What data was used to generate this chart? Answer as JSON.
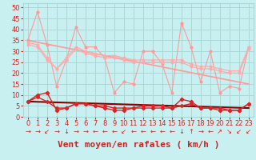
{
  "title": "",
  "xlabel": "Vent moyen/en rafales ( km/h )",
  "ylabel": "",
  "bg_color": "#c8f0f0",
  "grid_color": "#a8d8d8",
  "xlim": [
    -0.5,
    23.5
  ],
  "ylim": [
    0,
    52
  ],
  "yticks": [
    0,
    5,
    10,
    15,
    20,
    25,
    30,
    35,
    40,
    45,
    50
  ],
  "xticks": [
    0,
    1,
    2,
    3,
    4,
    5,
    6,
    7,
    8,
    9,
    10,
    11,
    12,
    13,
    14,
    15,
    16,
    17,
    18,
    19,
    20,
    21,
    22,
    23
  ],
  "series": [
    {
      "label": "rafales_max_spiky",
      "color": "#ff9999",
      "linewidth": 0.8,
      "marker": "o",
      "markersize": 2.0,
      "data_x": [
        0,
        1,
        2,
        3,
        4,
        5,
        6,
        7,
        8,
        9,
        10,
        11,
        12,
        13,
        14,
        15,
        16,
        17,
        18,
        19,
        20,
        21,
        22,
        23
      ],
      "data_y": [
        35,
        48,
        33,
        14,
        26,
        41,
        32,
        32,
        27,
        11,
        16,
        15,
        30,
        30,
        24,
        11,
        43,
        32,
        16,
        30,
        11,
        14,
        13,
        32
      ]
    },
    {
      "label": "rafales_trend_line",
      "color": "#ff9999",
      "linewidth": 1.2,
      "marker": null,
      "markersize": 0,
      "data_x": [
        0,
        23
      ],
      "data_y": [
        35,
        15
      ]
    },
    {
      "label": "rafales_smooth1",
      "color": "#ffaaaa",
      "linewidth": 0.9,
      "marker": "o",
      "markersize": 1.8,
      "data_x": [
        0,
        1,
        2,
        3,
        4,
        5,
        6,
        7,
        8,
        9,
        10,
        11,
        12,
        13,
        14,
        15,
        16,
        17,
        18,
        19,
        20,
        21,
        22,
        23
      ],
      "data_y": [
        33,
        32,
        26,
        22,
        26,
        31,
        29,
        28,
        27,
        27,
        26,
        25,
        25,
        25,
        25,
        25,
        25,
        23,
        22,
        22,
        21,
        20,
        20,
        31
      ]
    },
    {
      "label": "rafales_smooth2",
      "color": "#ffaaaa",
      "linewidth": 0.9,
      "marker": "o",
      "markersize": 1.8,
      "data_x": [
        0,
        1,
        2,
        3,
        4,
        5,
        6,
        7,
        8,
        9,
        10,
        11,
        12,
        13,
        14,
        15,
        16,
        17,
        18,
        19,
        20,
        21,
        22,
        23
      ],
      "data_y": [
        34,
        33,
        27,
        22,
        27,
        32,
        30,
        29,
        28,
        28,
        27,
        26,
        26,
        26,
        26,
        26,
        26,
        24,
        23,
        23,
        22,
        21,
        21,
        32
      ]
    },
    {
      "label": "vent_max_spiky",
      "color": "#dd2222",
      "linewidth": 1.0,
      "marker": "D",
      "markersize": 2.2,
      "data_x": [
        0,
        1,
        2,
        3,
        4,
        5,
        6,
        7,
        8,
        9,
        10,
        11,
        12,
        13,
        14,
        15,
        16,
        17,
        18,
        19,
        20,
        21,
        22,
        23
      ],
      "data_y": [
        7,
        10,
        11,
        3,
        4,
        6,
        6,
        5,
        4,
        3,
        3,
        4,
        4,
        4,
        4,
        4,
        8,
        7,
        4,
        4,
        3,
        3,
        3,
        6
      ]
    },
    {
      "label": "vent_smooth1",
      "color": "#dd2222",
      "linewidth": 1.0,
      "marker": "D",
      "markersize": 2.0,
      "data_x": [
        0,
        1,
        2,
        3,
        4,
        5,
        6,
        7,
        8,
        9,
        10,
        11,
        12,
        13,
        14,
        15,
        16,
        17,
        18,
        19,
        20,
        21,
        22,
        23
      ],
      "data_y": [
        7,
        9,
        7,
        4,
        4,
        6,
        6,
        5,
        5,
        4,
        4,
        4,
        5,
        5,
        5,
        4,
        5,
        6,
        4,
        4,
        4,
        3,
        3,
        6
      ]
    },
    {
      "label": "vent_trend_line",
      "color": "#880000",
      "linewidth": 1.5,
      "marker": null,
      "markersize": 0,
      "data_x": [
        0,
        23
      ],
      "data_y": [
        7,
        4
      ]
    }
  ],
  "wind_arrows": [
    "→",
    "→",
    "↙",
    "→",
    "↓",
    "→",
    "→",
    "←",
    "←",
    "←",
    "↙",
    "←",
    "←",
    "←",
    "←",
    "←",
    "↓",
    "↑",
    "→",
    "←",
    "↗",
    "↘",
    "↙",
    "↙"
  ],
  "arrow_color": "#cc2222",
  "xlabel_color": "#cc2222",
  "xlabel_fontsize": 8,
  "tick_fontsize": 6,
  "arrow_fontsize": 6
}
